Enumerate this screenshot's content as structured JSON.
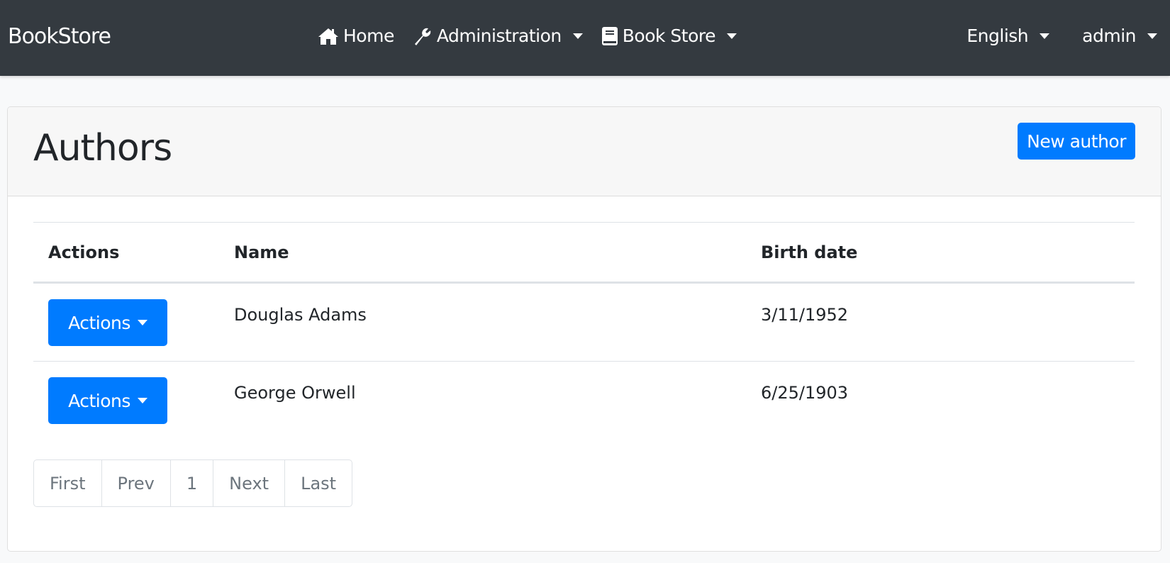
{
  "navbar": {
    "brand": "BookStore",
    "items": [
      {
        "label": "Home",
        "icon": "home-icon"
      },
      {
        "label": "Administration",
        "icon": "wrench-icon",
        "dropdown": true
      },
      {
        "label": "Book Store",
        "icon": "book-icon",
        "dropdown": true
      }
    ],
    "language": "English",
    "user": "admin"
  },
  "page": {
    "title": "Authors",
    "new_button": "New author"
  },
  "table": {
    "headers": [
      "Actions",
      "Name",
      "Birth date"
    ],
    "rows": [
      {
        "action": "Actions",
        "name": "Douglas Adams",
        "birth_date": "3/11/1952"
      },
      {
        "action": "Actions",
        "name": "George Orwell",
        "birth_date": "6/25/1903"
      }
    ]
  },
  "pagination": [
    "First",
    "Prev",
    "1",
    "Next",
    "Last"
  ],
  "colors": {
    "navbar": "#343a40",
    "primary": "#007bff"
  }
}
